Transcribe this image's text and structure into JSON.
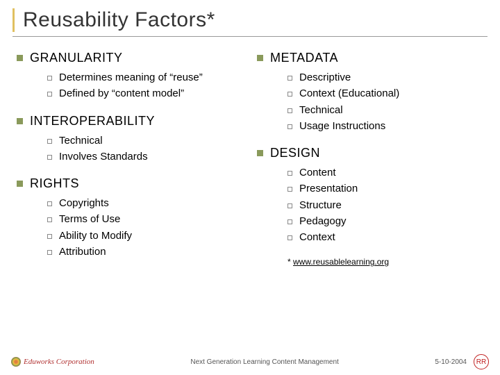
{
  "title": "Reusability Factors*",
  "left_sections": [
    {
      "heading": "GRANULARITY",
      "items": [
        "Determines meaning of “reuse”",
        "Defined by “content model”"
      ]
    },
    {
      "heading": "INTEROPERABILITY",
      "items": [
        "Technical",
        "Involves Standards"
      ]
    },
    {
      "heading": "RIGHTS",
      "items": [
        "Copyrights",
        "Terms of Use",
        "Ability to Modify",
        "Attribution"
      ]
    }
  ],
  "right_sections": [
    {
      "heading": "METADATA",
      "items": [
        "Descriptive",
        "Context (Educational)",
        "Technical",
        "Usage Instructions"
      ]
    },
    {
      "heading": "DESIGN",
      "items": [
        "Content",
        "Presentation",
        "Structure",
        "Pedagogy",
        "Context"
      ]
    }
  ],
  "footnote_prefix": "* ",
  "footnote_link": "www.reusablelearning.org",
  "footer": {
    "corp": "Eduworks Corporation",
    "center": "Next Generation Learning Content Management",
    "date": "5-10-2004",
    "badge": "RR"
  },
  "colors": {
    "title_accent": "#e0c060",
    "bullet_l1": "#8a9a5b",
    "bullet_l2_border": "#888888",
    "rr_color": "#c02020",
    "corp_color": "#b03030"
  }
}
